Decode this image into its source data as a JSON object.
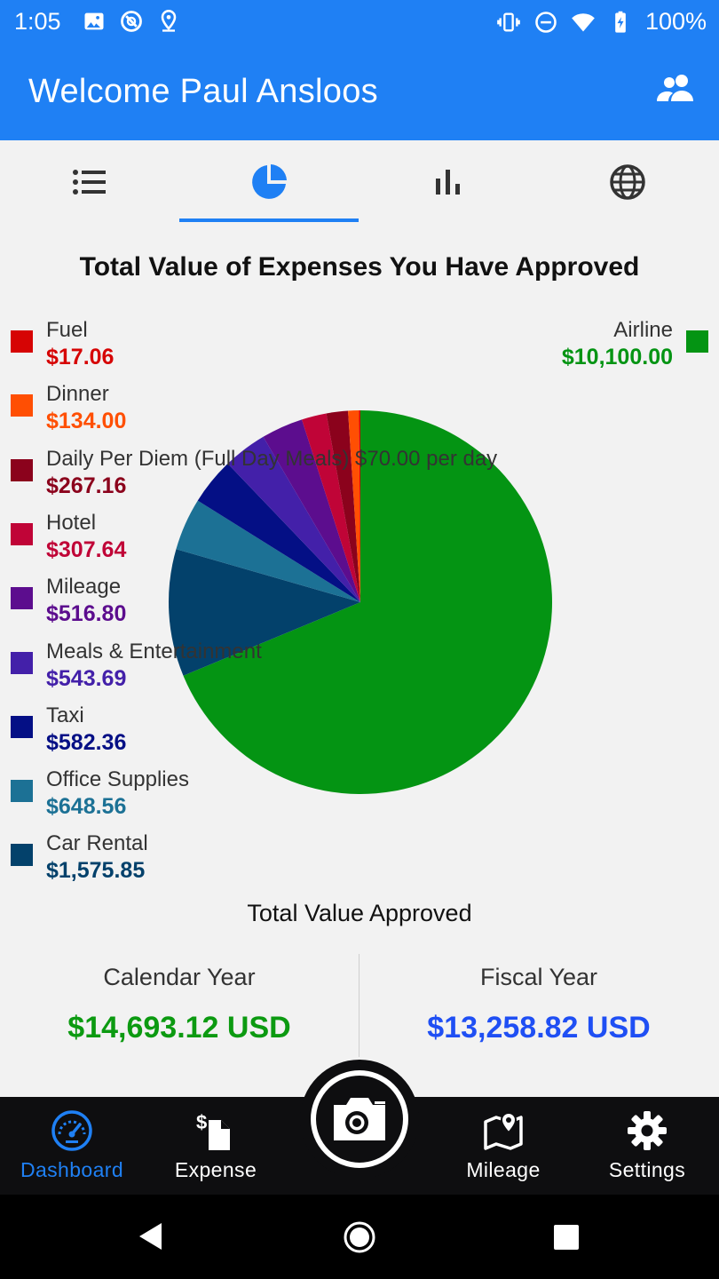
{
  "status_bar": {
    "time": "1:05",
    "battery": "100%",
    "left_icons": [
      "image-icon",
      "no-sync-icon",
      "location-icon"
    ],
    "right_icons": [
      "vibrate-icon",
      "do-not-disturb-icon",
      "wifi-icon",
      "battery-icon"
    ]
  },
  "app_bar": {
    "title": "Welcome Paul Ansloos",
    "action_icon": "people-icon",
    "color": "#1f80f4"
  },
  "tabs": [
    {
      "icon": "list-icon",
      "selected": false
    },
    {
      "icon": "pie-chart-icon",
      "selected": true
    },
    {
      "icon": "bar-chart-icon",
      "selected": false
    },
    {
      "icon": "globe-icon",
      "selected": false
    }
  ],
  "chart_data": {
    "type": "pie",
    "title": "Total Value of Expenses You Have Approved",
    "legend_position": "left-and-top-right",
    "slices": [
      {
        "label": "Airline",
        "value": 10100.0,
        "display": "$10,100.00",
        "color": "#049413"
      },
      {
        "label": "Car Rental",
        "value": 1575.85,
        "display": "$1,575.85",
        "color": "#03416b"
      },
      {
        "label": "Office Supplies",
        "value": 648.56,
        "display": "$648.56",
        "color": "#1c7195"
      },
      {
        "label": "Taxi",
        "value": 582.36,
        "display": "$582.36",
        "color": "#040f85"
      },
      {
        "label": "Meals & Entertainment",
        "value": 543.69,
        "display": "$543.69",
        "color": "#4320a9"
      },
      {
        "label": "Mileage",
        "value": 516.8,
        "display": "$516.80",
        "color": "#5c0d8e"
      },
      {
        "label": "Hotel",
        "value": 307.64,
        "display": "$307.64",
        "color": "#c00437"
      },
      {
        "label": "Daily Per Diem (Full Day Meals) $70.00 per day",
        "value": 267.16,
        "display": "$267.16",
        "color": "#8b021c"
      },
      {
        "label": "Dinner",
        "value": 134.0,
        "display": "$134.00",
        "color": "#ff4f03"
      },
      {
        "label": "Fuel",
        "value": 17.06,
        "display": "$17.06",
        "color": "#d60404"
      }
    ]
  },
  "legend_left_order": [
    "Fuel",
    "Dinner",
    "Daily Per Diem (Full Day Meals) $70.00 per day",
    "Hotel",
    "Mileage",
    "Meals & Entertainment",
    "Taxi",
    "Office Supplies",
    "Car Rental"
  ],
  "totals": {
    "title": "Total Value Approved",
    "calendar": {
      "label": "Calendar Year",
      "value": "$14,693.12 USD",
      "color": "#0c9a11"
    },
    "fiscal": {
      "label": "Fiscal Year",
      "value": "$13,258.82 USD",
      "color": "#1f4ff4"
    }
  },
  "bottom_nav": [
    {
      "label": "Dashboard",
      "icon": "speedometer-icon",
      "active": true
    },
    {
      "label": "Expense",
      "icon": "expense-doc-icon",
      "active": false
    },
    {
      "label": "",
      "icon": "camera-icon",
      "active": false
    },
    {
      "label": "Mileage",
      "icon": "map-icon",
      "active": false
    },
    {
      "label": "Settings",
      "icon": "gear-icon",
      "active": false
    }
  ],
  "system_nav": [
    "back-icon",
    "home-icon",
    "recents-icon"
  ]
}
